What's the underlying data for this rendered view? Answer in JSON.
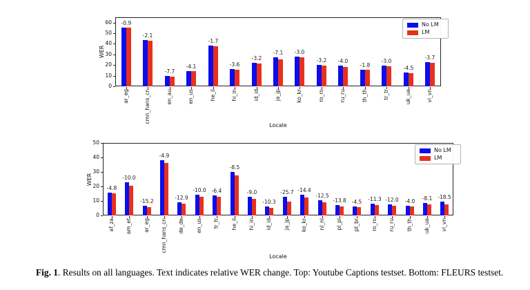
{
  "caption": {
    "label": "Fig. 1",
    "text": ". Results on all languages. Text indicates relative WER change. Top: Youtube Captions testset. Bottom: FLEURS testset."
  },
  "colors": {
    "no_lm_blue": "#0d0deb",
    "lm_red": "#e8301e",
    "axis": "#222222",
    "legend_border": "#b3b3b3"
  },
  "chart_data": [
    {
      "type": "bar",
      "testset": "Youtube Captions",
      "xlabel": "Locale",
      "ylabel": "WER",
      "ylim": [
        0,
        65
      ],
      "yticks": [
        0,
        10,
        20,
        30,
        40,
        50,
        60
      ],
      "grid": false,
      "legend": {
        "position": "upper right",
        "entries": [
          "No LM",
          "LM"
        ]
      },
      "categories": [
        "ar_eg",
        "cmn_hans_cn",
        "en_au",
        "en_us",
        "he_il",
        "hi_in",
        "id_id",
        "ja_jp",
        "ko_kr",
        "ro_ro",
        "ru_ru",
        "th_th",
        "tr_tr",
        "uk_ua",
        "vi_vn"
      ],
      "series": [
        {
          "name": "No LM",
          "color": "#0d0deb",
          "values": [
            55.5,
            43.5,
            10.0,
            14.6,
            38.5,
            16.0,
            22.4,
            27.4,
            28.0,
            20.3,
            19.3,
            15.7,
            19.6,
            12.7,
            22.6
          ]
        },
        {
          "name": "LM",
          "color": "#e8301e",
          "values": [
            55.0,
            42.6,
            9.2,
            14.0,
            37.9,
            15.4,
            21.7,
            25.5,
            27.2,
            19.6,
            18.5,
            15.4,
            19.0,
            12.1,
            21.8
          ]
        }
      ],
      "annotations": [
        "-0.9",
        "-2.1",
        "-7.7",
        "-4.1",
        "-1.7",
        "-3.6",
        "-3.2",
        "-7.1",
        "-3.0",
        "-3.2",
        "-4.0",
        "-1.8",
        "-3.0",
        "-4.5",
        "-3.7"
      ]
    },
    {
      "type": "bar",
      "testset": "FLEURS",
      "xlabel": "Locale",
      "ylabel": "WER",
      "ylim": [
        0,
        50
      ],
      "yticks": [
        0,
        10,
        20,
        30,
        40,
        50
      ],
      "grid": false,
      "legend": {
        "position": "upper right",
        "entries": [
          "No LM",
          "LM"
        ]
      },
      "categories": [
        "af_za",
        "am_et",
        "ar_eg",
        "cmn_hans_cn",
        "de_de",
        "en_us",
        "fr_fr",
        "he_il",
        "hi_in",
        "id_id",
        "ja_jp",
        "ko_kr",
        "nl_nl",
        "pl_pl",
        "pt_br",
        "ro_ro",
        "ru_ru",
        "th_th",
        "uk_ua",
        "vi_vn"
      ],
      "series": [
        {
          "name": "No LM",
          "color": "#0d0deb",
          "values": [
            15.9,
            23.0,
            6.6,
            38.0,
            9.0,
            14.2,
            13.9,
            30.0,
            12.8,
            6.0,
            12.8,
            14.5,
            10.5,
            7.0,
            6.1,
            8.2,
            7.4,
            6.6,
            8.5,
            9.6
          ]
        },
        {
          "name": "LM",
          "color": "#e8301e",
          "values": [
            15.1,
            20.7,
            5.6,
            36.1,
            7.9,
            12.8,
            13.0,
            27.4,
            11.6,
            5.4,
            9.5,
            12.4,
            9.2,
            6.0,
            5.8,
            7.3,
            6.5,
            6.3,
            7.8,
            7.8
          ]
        }
      ],
      "annotations": [
        "-4.8",
        "-10.0",
        "-15.2",
        "-4.9",
        "-12.9",
        "-10.0",
        "-6.4",
        "-8.5",
        "-9.0",
        "-10.3",
        "-25.7",
        "-14.4",
        "-12.5",
        "-13.8",
        "-4.5",
        "-11.3",
        "-12.0",
        "-4.0",
        "-8.1",
        "-18.5"
      ]
    }
  ]
}
